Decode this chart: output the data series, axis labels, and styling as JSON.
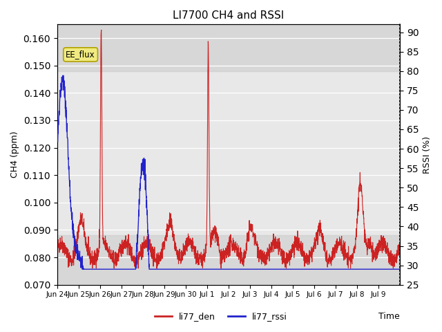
{
  "title": "LI7700 CH4 and RSSI",
  "xlabel": "Time",
  "ylabel_left": "CH4 (ppm)",
  "ylabel_right": "RSSI (%)",
  "ylim_left": [
    0.07,
    0.165
  ],
  "ylim_right": [
    25,
    92
  ],
  "yticks_left": [
    0.07,
    0.08,
    0.09,
    0.1,
    0.11,
    0.12,
    0.13,
    0.14,
    0.15,
    0.16
  ],
  "yticks_right": [
    25,
    30,
    35,
    40,
    45,
    50,
    55,
    60,
    65,
    70,
    75,
    80,
    85,
    90
  ],
  "xtick_positions": [
    0,
    1,
    2,
    3,
    4,
    5,
    6,
    7,
    8,
    9,
    10,
    11,
    12,
    13,
    14,
    15,
    16
  ],
  "xtick_labels": [
    "Jun 24",
    "Jun 25",
    "Jun 26",
    "Jun 27",
    "Jun 28",
    "Jun 29",
    "Jun 30",
    "Jul 1",
    "Jul 2",
    "Jul 3",
    "Jul 4",
    "Jul 5",
    "Jul 6",
    "Jul 7",
    "Jul 8",
    "Jul 9",
    ""
  ],
  "color_ch4": "#cc2222",
  "color_rssi": "#2222cc",
  "legend_labels": [
    "li77_den",
    "li77_rssi"
  ],
  "annotation_text": "EE_flux",
  "plot_bg_color": "#ffffff",
  "axes_bg_color": "#e8e8e8"
}
